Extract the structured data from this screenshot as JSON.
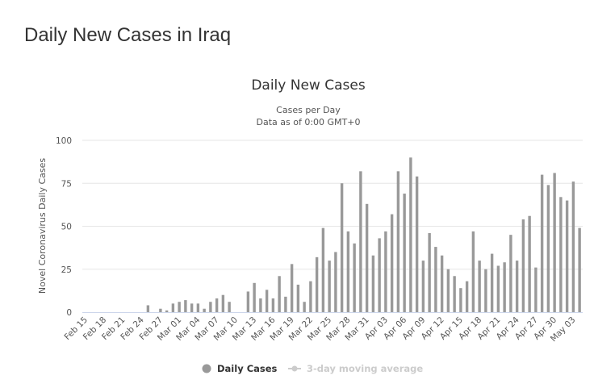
{
  "page": {
    "title": "Daily New Cases in Iraq"
  },
  "chart_data": {
    "type": "bar",
    "title": "Daily New Cases",
    "subtitle_line1": "Cases per Day",
    "subtitle_line2": "Data as of 0:00 GMT+0",
    "xlabel": "",
    "ylabel": "Novel Coronavirus Daily Cases",
    "ylim": [
      0,
      100
    ],
    "yticks": [
      0,
      25,
      50,
      75,
      100
    ],
    "grid": true,
    "bar_color": "#999999",
    "x_tick_labels": [
      "Feb 15",
      "Feb 18",
      "Feb 21",
      "Feb 24",
      "Feb 27",
      "Mar 01",
      "Mar 04",
      "Mar 07",
      "Mar 10",
      "Mar 13",
      "Mar 16",
      "Mar 19",
      "Mar 22",
      "Mar 25",
      "Mar 28",
      "Mar 31",
      "Apr 03",
      "Apr 06",
      "Apr 09",
      "Apr 12",
      "Apr 15",
      "Apr 18",
      "Apr 21",
      "Apr 24",
      "Apr 27",
      "Apr 30",
      "May 03"
    ],
    "x_tick_every": 3,
    "categories": [
      "Feb 15",
      "Feb 16",
      "Feb 17",
      "Feb 18",
      "Feb 19",
      "Feb 20",
      "Feb 21",
      "Feb 22",
      "Feb 23",
      "Feb 24",
      "Feb 25",
      "Feb 26",
      "Feb 27",
      "Feb 28",
      "Feb 29",
      "Mar 01",
      "Mar 02",
      "Mar 03",
      "Mar 04",
      "Mar 05",
      "Mar 06",
      "Mar 07",
      "Mar 08",
      "Mar 09",
      "Mar 10",
      "Mar 11",
      "Mar 12",
      "Mar 13",
      "Mar 14",
      "Mar 15",
      "Mar 16",
      "Mar 17",
      "Mar 18",
      "Mar 19",
      "Mar 20",
      "Mar 21",
      "Mar 22",
      "Mar 23",
      "Mar 24",
      "Mar 25",
      "Mar 26",
      "Mar 27",
      "Mar 28",
      "Mar 29",
      "Mar 30",
      "Mar 31",
      "Apr 01",
      "Apr 02",
      "Apr 03",
      "Apr 04",
      "Apr 05",
      "Apr 06",
      "Apr 07",
      "Apr 08",
      "Apr 09",
      "Apr 10",
      "Apr 11",
      "Apr 12",
      "Apr 13",
      "Apr 14",
      "Apr 15",
      "Apr 16",
      "Apr 17",
      "Apr 18",
      "Apr 19",
      "Apr 20",
      "Apr 21",
      "Apr 22",
      "Apr 23",
      "Apr 24",
      "Apr 25",
      "Apr 26",
      "Apr 27",
      "Apr 28",
      "Apr 29",
      "Apr 30",
      "May 01",
      "May 02",
      "May 03",
      "May 04"
    ],
    "series": [
      {
        "name": "Daily Cases",
        "values": [
          0,
          0,
          0,
          0,
          0,
          0,
          0,
          0,
          0,
          0,
          4,
          0,
          2,
          1,
          5,
          6,
          7,
          5,
          5,
          2,
          6,
          8,
          10,
          6,
          0,
          0,
          12,
          17,
          8,
          13,
          8,
          21,
          9,
          28,
          16,
          6,
          18,
          32,
          49,
          30,
          35,
          75,
          47,
          40,
          82,
          63,
          33,
          43,
          47,
          57,
          82,
          69,
          90,
          79,
          30,
          46,
          38,
          33,
          25,
          21,
          14,
          18,
          47,
          30,
          25,
          34,
          27,
          29,
          45,
          30,
          54,
          56,
          26,
          80,
          74,
          81,
          67,
          65,
          76,
          49
        ]
      }
    ],
    "legend": {
      "position": "bottom-center",
      "items": [
        {
          "label": "Daily Cases",
          "color": "#999999",
          "active": true
        },
        {
          "label": "3-day moving average",
          "color": "#cccccc",
          "active": false
        }
      ]
    }
  }
}
